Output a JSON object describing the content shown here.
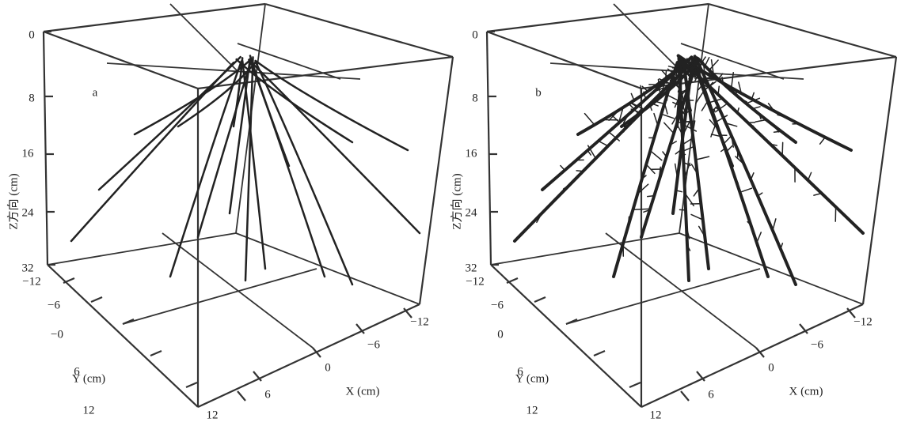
{
  "panels": [
    {
      "label": "a",
      "z_axis": {
        "title": "Z方向 (cm)",
        "ticks": [
          "0",
          "8",
          "16",
          "24",
          "32"
        ]
      },
      "y_axis": {
        "title": "Y (cm)",
        "ticks": [
          "−12",
          "−6",
          "−0",
          "6",
          "12"
        ]
      },
      "x_axis": {
        "title": "X (cm)",
        "ticks": [
          "12",
          "6",
          "0",
          "−6",
          "−12"
        ]
      }
    },
    {
      "label": "b",
      "z_axis": {
        "title": "Z方向 (cm)",
        "ticks": [
          "0",
          "8",
          "16",
          "24",
          "32"
        ]
      },
      "y_axis": {
        "title": "Y (cm)",
        "ticks": [
          "−12",
          "−6",
          "0",
          "6",
          "12"
        ]
      },
      "x_axis": {
        "title": "X (cm)",
        "ticks": [
          "12",
          "6",
          "0",
          "−6",
          "−12"
        ]
      }
    }
  ]
}
